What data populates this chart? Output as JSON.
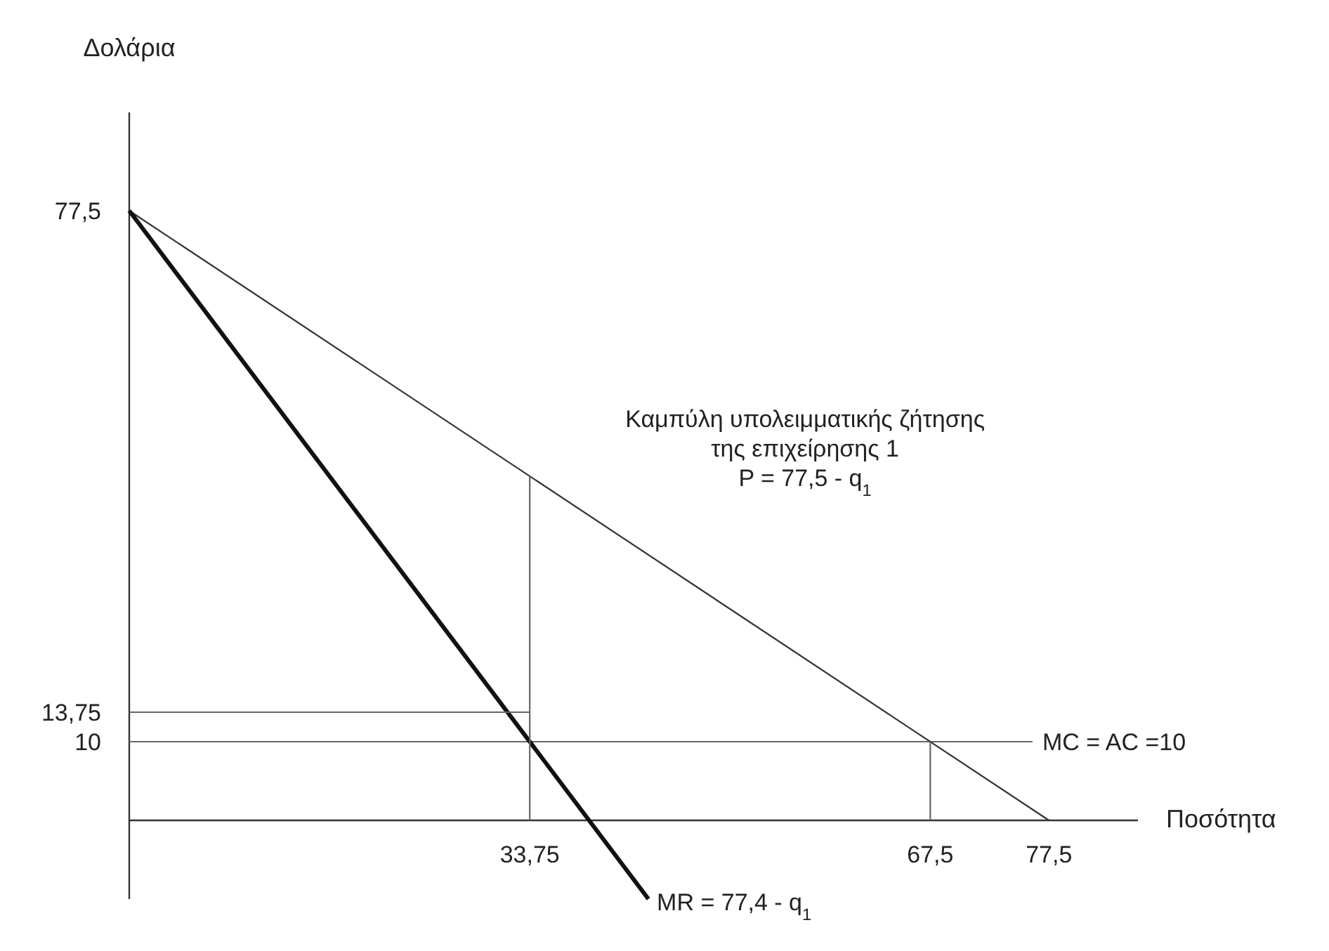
{
  "chart_data": {
    "type": "line",
    "xlabel": "Ποσότητα",
    "ylabel": "Δολάρια",
    "xlim": [
      0,
      85
    ],
    "ylim": [
      -10,
      90
    ],
    "xticks": [
      {
        "value": 33.75,
        "label": "33,75"
      },
      {
        "value": 67.5,
        "label": "67,5"
      },
      {
        "value": 77.5,
        "label": "77,5"
      }
    ],
    "yticks": [
      {
        "value": 10,
        "label": "10"
      },
      {
        "value": 13.75,
        "label": "13,75"
      },
      {
        "value": 77.5,
        "label": "77,5"
      }
    ],
    "series": [
      {
        "color": "#333333",
        "x": [
          0,
          77.5
        ],
        "values": [
          77.5,
          0
        ]
      },
      {
        "color": "#111111",
        "x": [
          0,
          43.75
        ],
        "values": [
          77.5,
          -10
        ]
      },
      {
        "color": "#666666",
        "x": [
          0,
          33.75
        ],
        "values": [
          13.75,
          13.75
        ]
      },
      {
        "color": "#666666",
        "x": [
          33.75,
          33.75
        ],
        "values": [
          0,
          43.75
        ]
      },
      {
        "color": "#666666",
        "x": [
          67.5,
          67.5
        ],
        "values": [
          0,
          10
        ]
      }
    ],
    "ref_lines": [
      {
        "axis": "y",
        "value": 10,
        "label": "MC = AC =10",
        "color": "#666666"
      }
    ],
    "annotations": [
      "Καμπύλη υπολειμματικής ζήτησης\nτης επιχείρησης 1\nP = 77,5 - q$_{1}$",
      {
        "text": "MR = 77,4 - q$_{1}$",
        "x": 43.75,
        "y": -10
      }
    ],
    "grid": false,
    "marker": "none",
    "line_style": "solid"
  }
}
